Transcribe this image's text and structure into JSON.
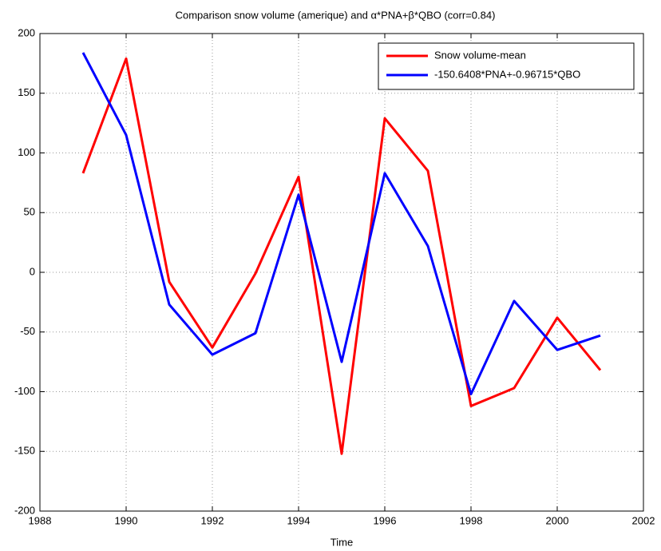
{
  "chart_data": {
    "type": "line",
    "title": "Comparison snow volume (amerique) and α*PNA+β*QBO (corr=0.84)",
    "x_label": "Time",
    "x": [
      1989,
      1990,
      1991,
      1992,
      1993,
      1994,
      1995,
      1996,
      1997,
      1998,
      1999,
      2000,
      2001
    ],
    "series": [
      {
        "name": "Snow volume-mean",
        "color": "#ff0000",
        "values": [
          83,
          179,
          -8,
          -63,
          -1,
          80,
          -152,
          129,
          85,
          -112,
          -97,
          -38,
          -82
        ]
      },
      {
        "name": "-150.6408*PNA+-0.96715*QBO",
        "color": "#0000ff",
        "values": [
          184,
          115,
          -27,
          -69,
          -51,
          65,
          -75,
          83,
          22,
          -102,
          -24,
          -65,
          -53
        ]
      }
    ],
    "xlim": [
      1988,
      2002
    ],
    "xticks": [
      1988,
      1990,
      1992,
      1994,
      1996,
      1998,
      2000,
      2002
    ],
    "ylim": [
      -200,
      200
    ],
    "yticks": [
      -200,
      -150,
      -100,
      -50,
      0,
      50,
      100,
      150,
      200
    ],
    "grid": true,
    "legend": "northeast"
  }
}
